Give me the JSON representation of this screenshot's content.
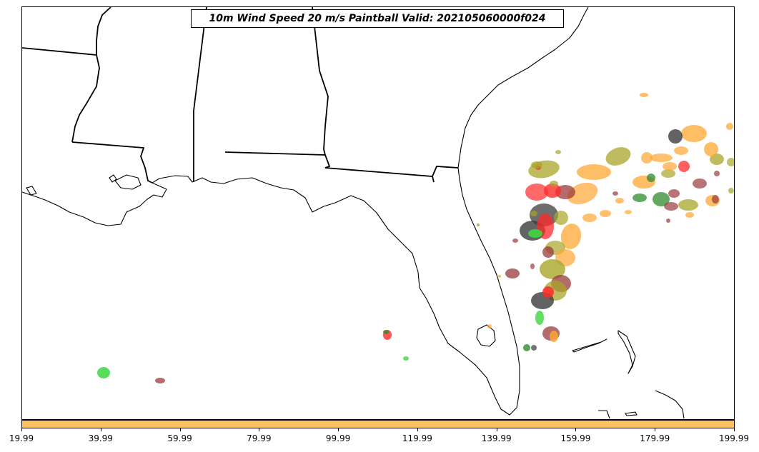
{
  "title": "10m Wind Speed 20 m/s Paintball Valid: 202105060000f024",
  "colorbar": {
    "color": "#ffc165",
    "ticks": [
      "19.99",
      "39.99",
      "59.99",
      "79.99",
      "99.99",
      "119.99",
      "139.99",
      "159.99",
      "179.99",
      "199.99"
    ]
  },
  "paintball_colors": {
    "orange": "#ffa733",
    "olive": "#a8a62a",
    "red": "#ff2a2a",
    "gray": "#3c3c3c",
    "green": "#3fd63f",
    "darkgreen": "#2e8a2e",
    "brown": "#9a3a3a"
  }
}
